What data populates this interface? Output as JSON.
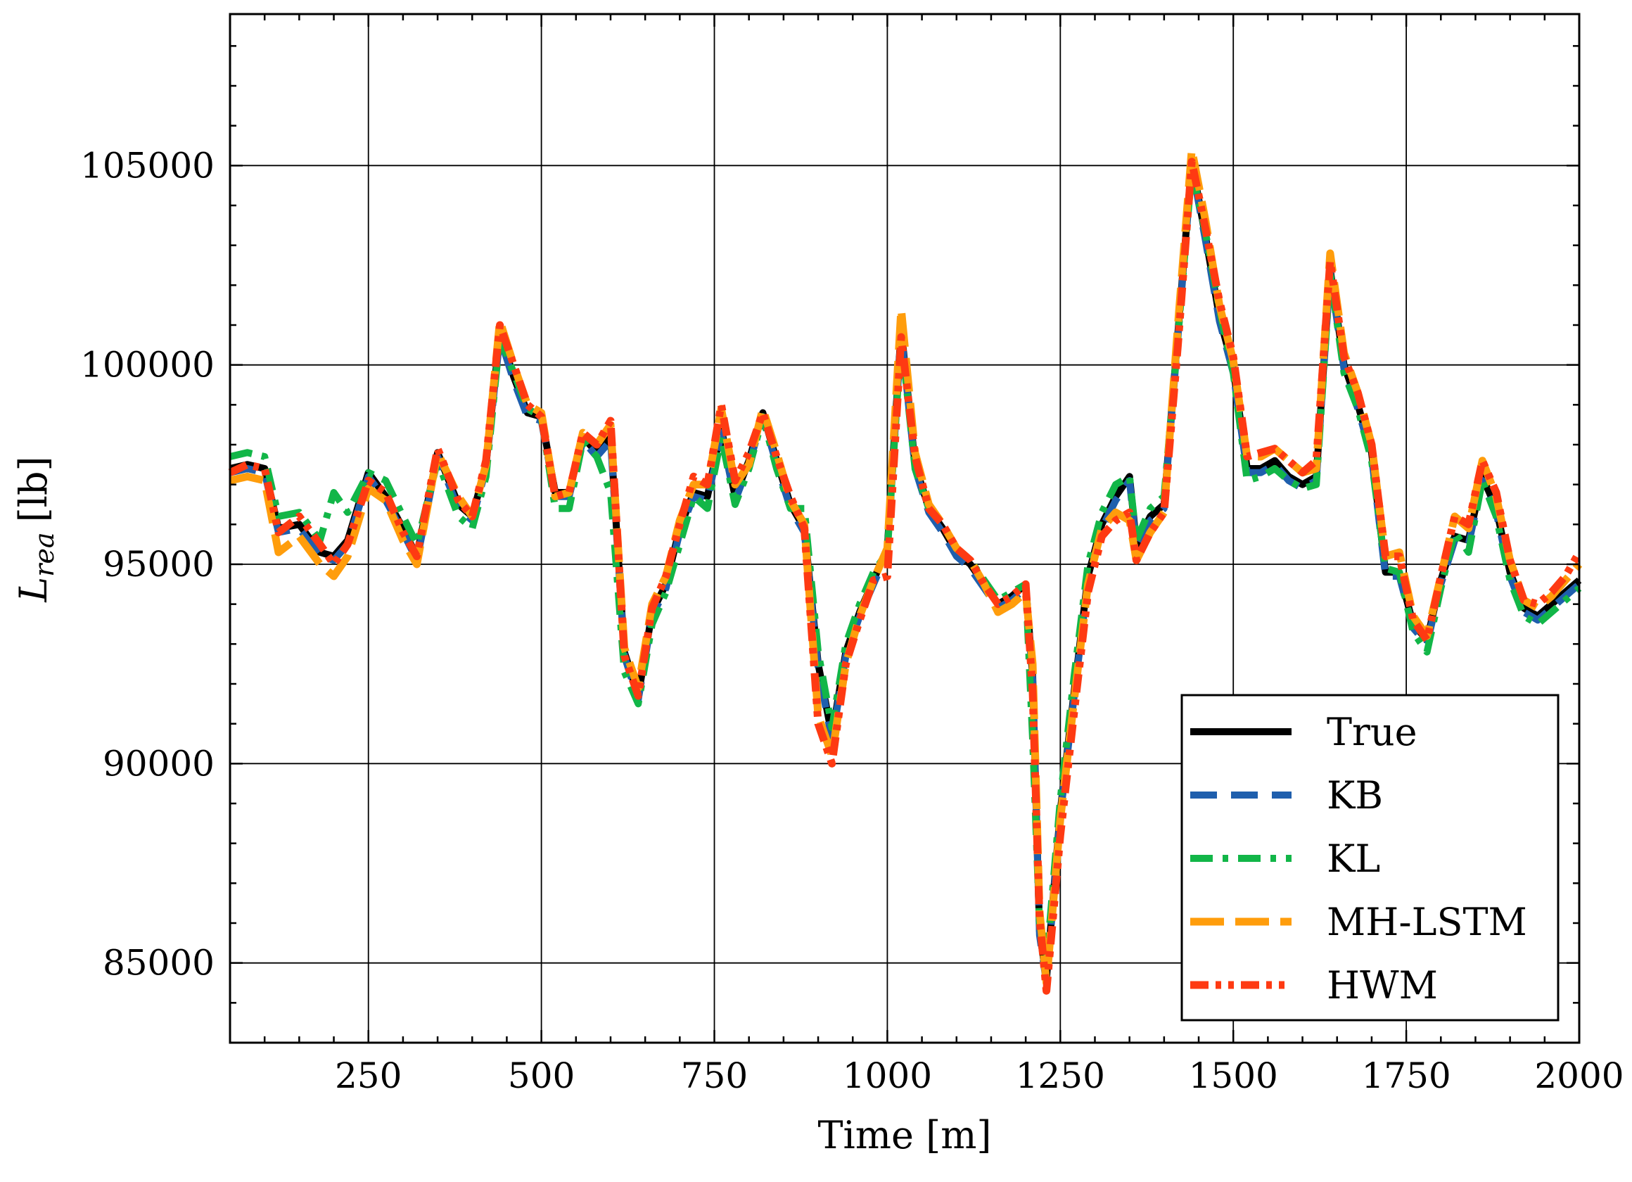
{
  "chart_data": {
    "type": "line",
    "xlabel": "Time [m]",
    "ylabel": "L_rea [lb]",
    "ylabel_main": "L",
    "ylabel_sub": "rea",
    "ylabel_unit": "[lb]",
    "xlim": [
      50,
      2000
    ],
    "ylim": [
      83000,
      108800
    ],
    "xticks": [
      "250",
      "500",
      "750",
      "1000",
      "1250",
      "1500",
      "1750",
      "2000"
    ],
    "yticks": [
      "85000",
      "90000",
      "95000",
      "100000",
      "105000"
    ],
    "grid": true,
    "legend_position": "lower-right",
    "x": [
      50,
      75,
      100,
      120,
      150,
      180,
      200,
      220,
      250,
      275,
      300,
      320,
      350,
      380,
      400,
      420,
      440,
      460,
      480,
      500,
      520,
      540,
      560,
      580,
      600,
      620,
      640,
      660,
      680,
      700,
      720,
      740,
      760,
      780,
      800,
      820,
      840,
      860,
      880,
      900,
      920,
      940,
      960,
      980,
      1000,
      1020,
      1040,
      1060,
      1080,
      1100,
      1120,
      1140,
      1160,
      1180,
      1200,
      1210,
      1220,
      1230,
      1250,
      1270,
      1290,
      1310,
      1330,
      1350,
      1360,
      1380,
      1400,
      1420,
      1440,
      1460,
      1480,
      1500,
      1520,
      1540,
      1560,
      1580,
      1600,
      1620,
      1640,
      1660,
      1680,
      1700,
      1720,
      1740,
      1760,
      1780,
      1800,
      1820,
      1840,
      1860,
      1880,
      1900,
      1920,
      1940,
      1960,
      1980,
      2000
    ],
    "series": [
      {
        "name": "True",
        "color": "#000000",
        "values": [
          97400,
          97500,
          97400,
          95900,
          96000,
          95300,
          95200,
          95600,
          97300,
          96700,
          95900,
          95200,
          97800,
          96500,
          96200,
          97500,
          100800,
          99700,
          98800,
          98700,
          96800,
          96800,
          98200,
          97800,
          98200,
          92800,
          91700,
          93800,
          94500,
          95900,
          96800,
          96700,
          98400,
          96700,
          97600,
          98800,
          97600,
          96500,
          95900,
          92500,
          90700,
          92800,
          93800,
          94600,
          95400,
          100900,
          97500,
          96400,
          95900,
          95300,
          95000,
          94500,
          94000,
          94200,
          94500,
          92200,
          85800,
          84600,
          88800,
          91800,
          94700,
          96000,
          96700,
          97200,
          95500,
          96200,
          96500,
          100800,
          105100,
          103200,
          101200,
          99900,
          97400,
          97400,
          97600,
          97200,
          97000,
          97200,
          102400,
          100000,
          99000,
          97800,
          94800,
          94800,
          93500,
          93100,
          94600,
          95700,
          95600,
          97200,
          96400,
          94800,
          93900,
          93700,
          94000,
          94300,
          94600
        ]
      },
      {
        "name": "KB",
        "color": "#1f5fad",
        "values": [
          97300,
          97400,
          97300,
          95800,
          95900,
          95200,
          95100,
          95500,
          97200,
          96600,
          95800,
          95100,
          97700,
          96400,
          96100,
          97400,
          100700,
          99600,
          98700,
          98600,
          96700,
          96700,
          98100,
          97700,
          98100,
          92700,
          91600,
          93700,
          94400,
          95800,
          96700,
          96600,
          98300,
          96600,
          97500,
          98700,
          97500,
          96400,
          95800,
          92400,
          90600,
          92700,
          93700,
          94500,
          95300,
          100800,
          97400,
          96300,
          95800,
          95200,
          94900,
          94400,
          93900,
          94100,
          94400,
          92100,
          85700,
          84500,
          88700,
          91700,
          94600,
          95900,
          96600,
          97100,
          95400,
          96100,
          96400,
          100700,
          105000,
          103100,
          101100,
          99800,
          97300,
          97300,
          97500,
          97100,
          96900,
          97100,
          102300,
          99900,
          98900,
          97700,
          94700,
          94700,
          93400,
          93000,
          94500,
          95600,
          95500,
          97100,
          96300,
          94700,
          93800,
          93600,
          93900,
          94200,
          94500
        ]
      },
      {
        "name": "KL",
        "color": "#12b648",
        "values": [
          97700,
          97800,
          97700,
          96200,
          96300,
          95600,
          96800,
          96300,
          97300,
          97100,
          96200,
          95500,
          97600,
          96200,
          95900,
          97200,
          100700,
          99800,
          98900,
          98700,
          96400,
          96400,
          98100,
          97700,
          96800,
          92300,
          91500,
          93500,
          94300,
          95500,
          96700,
          96400,
          98200,
          96500,
          97400,
          98700,
          97400,
          96400,
          96400,
          92800,
          90900,
          93000,
          94000,
          94800,
          95300,
          100700,
          97400,
          96400,
          96000,
          95400,
          95100,
          94600,
          94100,
          94300,
          94500,
          90600,
          86000,
          85000,
          89100,
          92200,
          95000,
          96300,
          97000,
          97200,
          95600,
          96400,
          96700,
          100700,
          104900,
          103300,
          101400,
          99800,
          97100,
          97200,
          97400,
          97100,
          96900,
          97000,
          102300,
          99800,
          98900,
          97600,
          94900,
          94800,
          93300,
          92800,
          94400,
          95800,
          95300,
          97100,
          96200,
          94600,
          93700,
          93500,
          93800,
          94100,
          94400
        ]
      },
      {
        "name": "MH-LSTM",
        "color": "#ff9d0c",
        "values": [
          97100,
          97200,
          97100,
          95300,
          95700,
          95000,
          94700,
          95200,
          96900,
          96600,
          95600,
          95000,
          97800,
          96700,
          96200,
          97500,
          101100,
          100000,
          99000,
          98800,
          96700,
          96800,
          98300,
          98000,
          98500,
          92900,
          91900,
          94000,
          94700,
          96100,
          97000,
          97000,
          98900,
          97000,
          97500,
          98900,
          97800,
          96600,
          96000,
          91200,
          90200,
          92500,
          93700,
          94600,
          95400,
          101400,
          97800,
          96500,
          96000,
          95400,
          95100,
          94500,
          93800,
          94000,
          94300,
          92500,
          86300,
          84500,
          88600,
          91600,
          94500,
          95900,
          96300,
          96100,
          95100,
          95800,
          96300,
          101000,
          105400,
          103600,
          101500,
          100100,
          97700,
          97700,
          97900,
          97600,
          97300,
          97400,
          102800,
          100300,
          99300,
          98000,
          95200,
          95300,
          93700,
          93200,
          94700,
          96200,
          95900,
          97600,
          96700,
          95100,
          94100,
          93900,
          94200,
          94600,
          95000
        ]
      },
      {
        "name": "HWM",
        "color": "#fe3a12",
        "values": [
          97300,
          97500,
          97400,
          95800,
          96200,
          95500,
          95000,
          95500,
          97100,
          96800,
          95800,
          95200,
          97900,
          96600,
          96200,
          97600,
          101000,
          100000,
          99000,
          98700,
          96700,
          96800,
          98300,
          98000,
          98600,
          92700,
          91700,
          93900,
          94700,
          96000,
          97200,
          97000,
          99000,
          97100,
          97800,
          98800,
          97700,
          96700,
          95900,
          91000,
          90000,
          92500,
          93600,
          94600,
          94700,
          100700,
          97700,
          96400,
          96000,
          95400,
          95100,
          94500,
          94000,
          94200,
          94500,
          91800,
          86100,
          84300,
          88200,
          91300,
          94300,
          95700,
          96100,
          96300,
          95100,
          95800,
          96300,
          100500,
          105100,
          103400,
          101600,
          100200,
          97700,
          97800,
          97900,
          97600,
          97300,
          97600,
          102600,
          100200,
          99300,
          98000,
          95200,
          95200,
          93600,
          93100,
          94700,
          96200,
          96000,
          97600,
          96800,
          95100,
          94100,
          94000,
          94300,
          94700,
          95300
        ]
      }
    ]
  }
}
